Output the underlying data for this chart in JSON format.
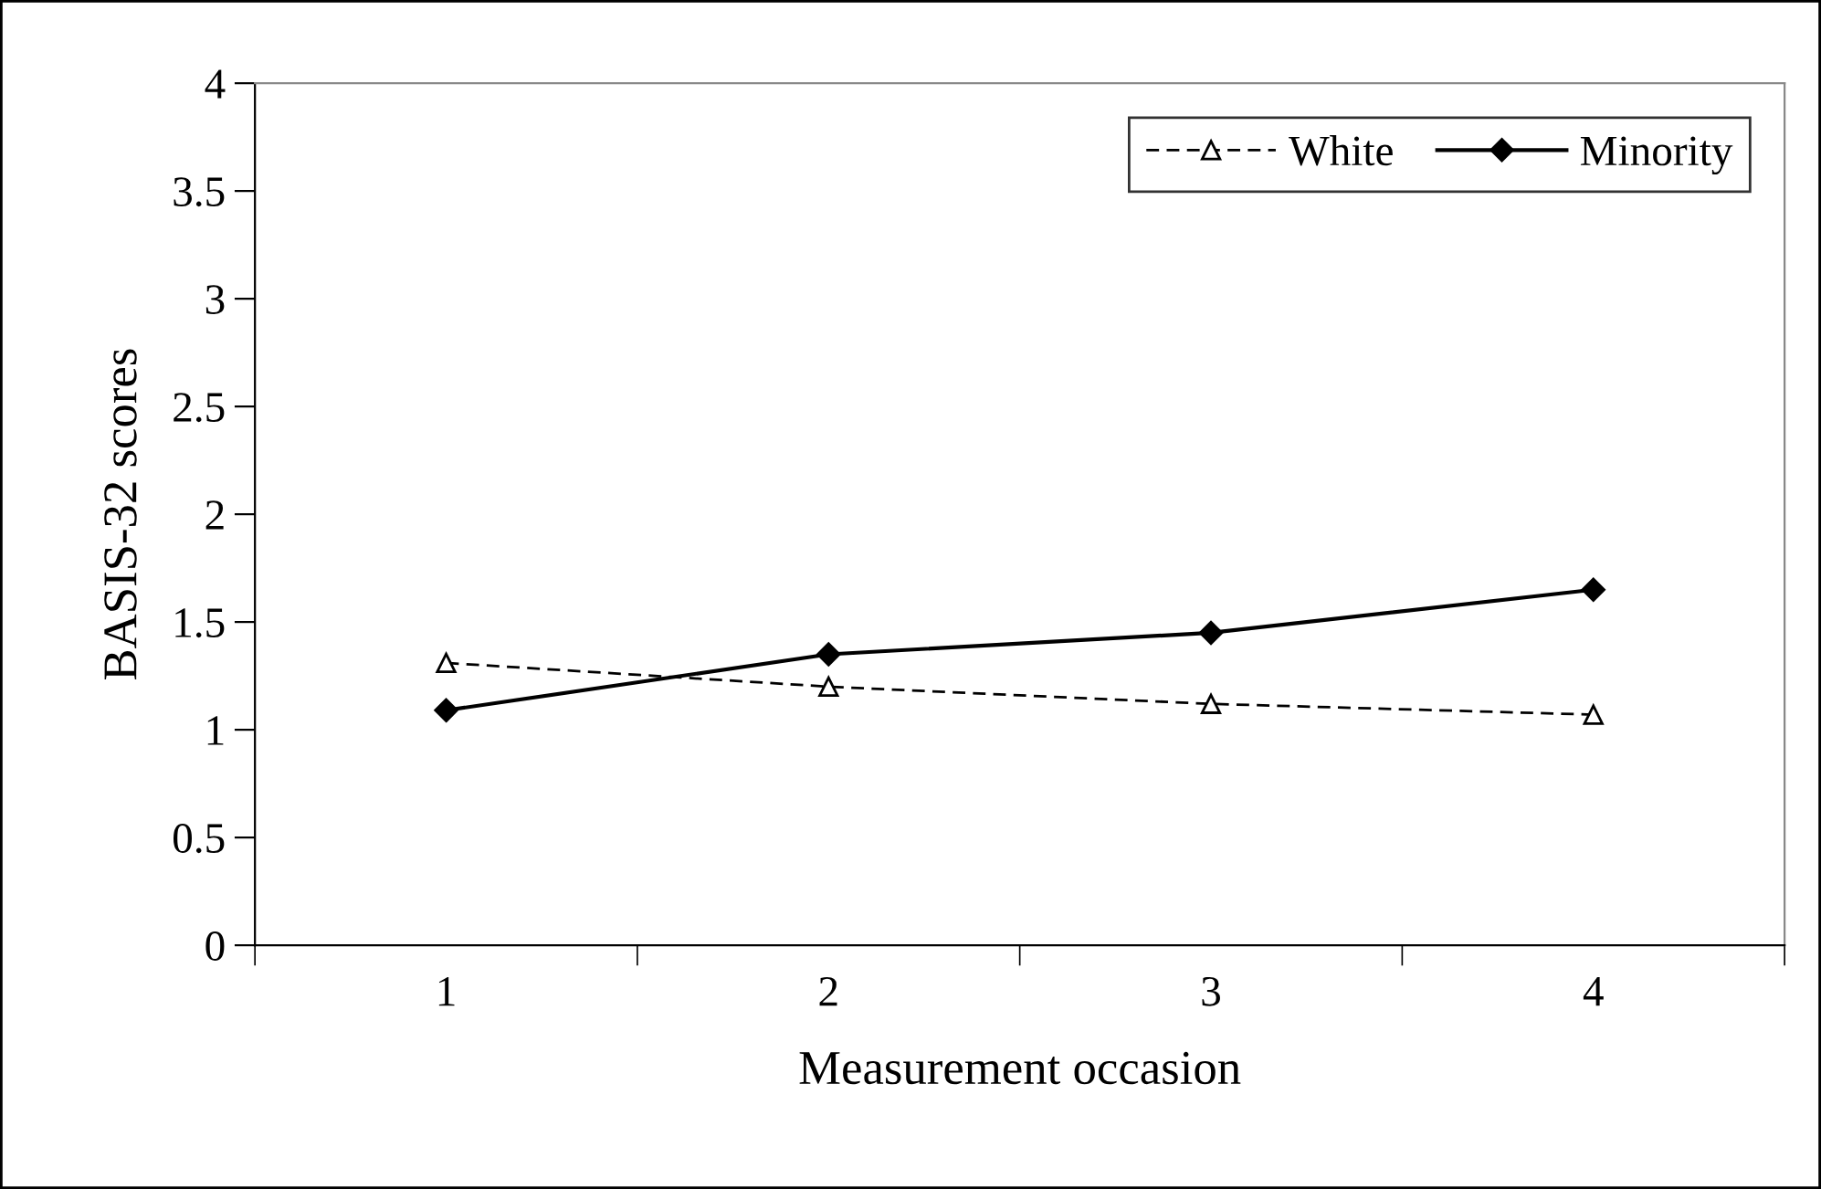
{
  "chart_data": {
    "type": "line",
    "xlabel": "Measurement occasion",
    "ylabel": "BASIS-32 scores",
    "categories": [
      "1",
      "2",
      "3",
      "4"
    ],
    "ylim": [
      0,
      4
    ],
    "yticks": [
      0,
      0.5,
      1,
      1.5,
      2,
      2.5,
      3,
      3.5,
      4
    ],
    "grid": false,
    "legend": "top right",
    "series": [
      {
        "name": "White",
        "color": "#000000",
        "marker": "triangle",
        "line_style": "dashed",
        "values": [
          1.31,
          1.2,
          1.12,
          1.07
        ]
      },
      {
        "name": "Minority",
        "color": "#000000",
        "marker": "diamond",
        "line_style": "solid",
        "values": [
          1.09,
          1.35,
          1.45,
          1.65
        ]
      }
    ]
  }
}
